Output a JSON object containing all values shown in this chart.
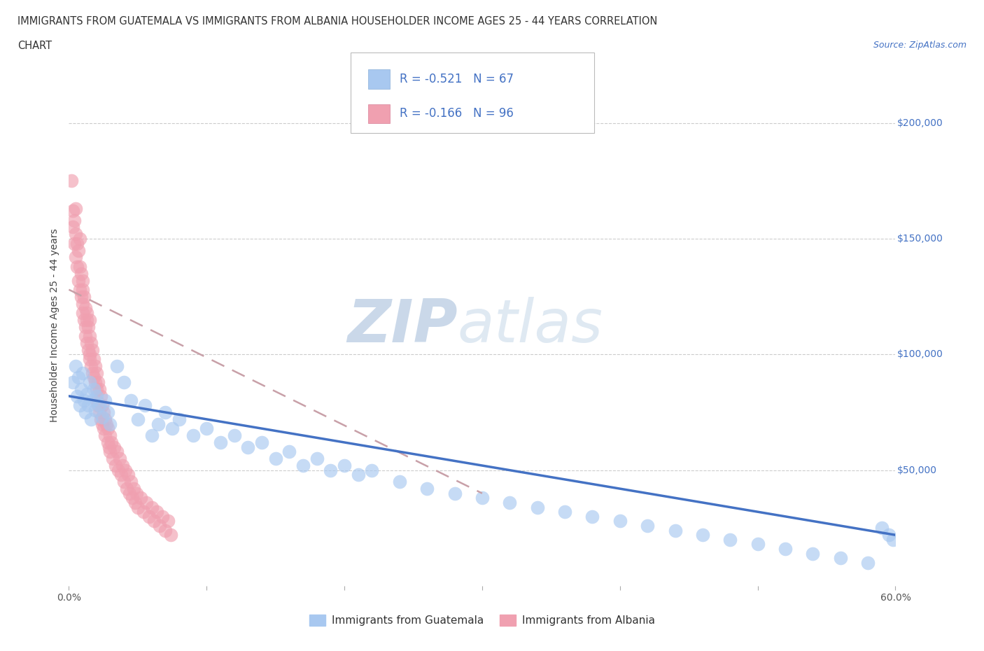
{
  "title_line1": "IMMIGRANTS FROM GUATEMALA VS IMMIGRANTS FROM ALBANIA HOUSEHOLDER INCOME AGES 25 - 44 YEARS CORRELATION",
  "title_line2": "CHART",
  "source": "Source: ZipAtlas.com",
  "ylabel": "Householder Income Ages 25 - 44 years",
  "xlim": [
    0.0,
    0.6
  ],
  "ylim": [
    0,
    225000
  ],
  "x_ticks": [
    0.0,
    0.1,
    0.2,
    0.3,
    0.4,
    0.5,
    0.6
  ],
  "y_ticks": [
    50000,
    100000,
    150000,
    200000
  ],
  "guatemala_color": "#a8c8f0",
  "albania_color": "#f0a0b0",
  "guatemala_line_color": "#4472c4",
  "albania_line_color": "#c8a0a8",
  "R_guatemala": -0.521,
  "N_guatemala": 67,
  "R_albania": -0.166,
  "N_albania": 96,
  "watermark_zip": "ZIP",
  "watermark_atlas": "atlas",
  "legend_R1": "R = -0.521",
  "legend_N1": "N = 67",
  "legend_R2": "R = -0.166",
  "legend_N2": "N = 96",
  "legend_label1": "Immigrants from Guatemala",
  "legend_label2": "Immigrants from Albania",
  "guatemala_x": [
    0.003,
    0.005,
    0.006,
    0.007,
    0.008,
    0.009,
    0.01,
    0.011,
    0.012,
    0.013,
    0.014,
    0.015,
    0.016,
    0.017,
    0.018,
    0.019,
    0.02,
    0.022,
    0.024,
    0.026,
    0.028,
    0.03,
    0.035,
    0.04,
    0.045,
    0.05,
    0.055,
    0.06,
    0.065,
    0.07,
    0.075,
    0.08,
    0.09,
    0.1,
    0.11,
    0.12,
    0.13,
    0.14,
    0.15,
    0.16,
    0.17,
    0.18,
    0.19,
    0.2,
    0.21,
    0.22,
    0.24,
    0.26,
    0.28,
    0.3,
    0.32,
    0.34,
    0.36,
    0.38,
    0.4,
    0.42,
    0.44,
    0.46,
    0.48,
    0.5,
    0.52,
    0.54,
    0.56,
    0.58,
    0.59,
    0.595,
    0.598
  ],
  "guatemala_y": [
    88000,
    95000,
    82000,
    90000,
    78000,
    85000,
    92000,
    80000,
    75000,
    83000,
    78000,
    88000,
    72000,
    80000,
    85000,
    76000,
    82000,
    78000,
    73000,
    80000,
    75000,
    70000,
    95000,
    88000,
    80000,
    72000,
    78000,
    65000,
    70000,
    75000,
    68000,
    72000,
    65000,
    68000,
    62000,
    65000,
    60000,
    62000,
    55000,
    58000,
    52000,
    55000,
    50000,
    52000,
    48000,
    50000,
    45000,
    42000,
    40000,
    38000,
    36000,
    34000,
    32000,
    30000,
    28000,
    26000,
    24000,
    22000,
    20000,
    18000,
    16000,
    14000,
    12000,
    10000,
    25000,
    22000,
    20000
  ],
  "albania_x": [
    0.002,
    0.003,
    0.003,
    0.004,
    0.004,
    0.005,
    0.005,
    0.005,
    0.006,
    0.006,
    0.007,
    0.007,
    0.008,
    0.008,
    0.008,
    0.009,
    0.009,
    0.01,
    0.01,
    0.01,
    0.01,
    0.011,
    0.011,
    0.012,
    0.012,
    0.012,
    0.013,
    0.013,
    0.013,
    0.014,
    0.014,
    0.015,
    0.015,
    0.015,
    0.015,
    0.016,
    0.016,
    0.017,
    0.017,
    0.018,
    0.018,
    0.019,
    0.019,
    0.02,
    0.02,
    0.02,
    0.021,
    0.021,
    0.022,
    0.022,
    0.023,
    0.023,
    0.024,
    0.024,
    0.025,
    0.025,
    0.026,
    0.026,
    0.027,
    0.028,
    0.028,
    0.029,
    0.03,
    0.03,
    0.031,
    0.032,
    0.033,
    0.034,
    0.035,
    0.036,
    0.037,
    0.038,
    0.039,
    0.04,
    0.041,
    0.042,
    0.043,
    0.044,
    0.045,
    0.046,
    0.047,
    0.048,
    0.049,
    0.05,
    0.052,
    0.054,
    0.056,
    0.058,
    0.06,
    0.062,
    0.064,
    0.066,
    0.068,
    0.07,
    0.072,
    0.074
  ],
  "albania_y": [
    175000,
    155000,
    162000,
    148000,
    158000,
    142000,
    152000,
    163000,
    138000,
    148000,
    132000,
    145000,
    128000,
    138000,
    150000,
    125000,
    135000,
    122000,
    132000,
    118000,
    128000,
    115000,
    125000,
    112000,
    120000,
    108000,
    115000,
    105000,
    118000,
    102000,
    112000,
    100000,
    108000,
    98000,
    115000,
    95000,
    105000,
    92000,
    102000,
    90000,
    98000,
    88000,
    95000,
    85000,
    92000,
    80000,
    88000,
    78000,
    85000,
    75000,
    82000,
    72000,
    78000,
    70000,
    75000,
    68000,
    72000,
    65000,
    70000,
    62000,
    68000,
    60000,
    65000,
    58000,
    62000,
    55000,
    60000,
    52000,
    58000,
    50000,
    55000,
    48000,
    52000,
    45000,
    50000,
    42000,
    48000,
    40000,
    45000,
    38000,
    42000,
    36000,
    40000,
    34000,
    38000,
    32000,
    36000,
    30000,
    34000,
    28000,
    32000,
    26000,
    30000,
    24000,
    28000,
    22000
  ]
}
